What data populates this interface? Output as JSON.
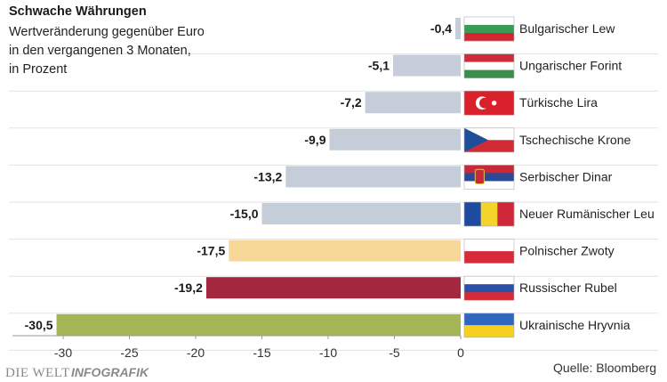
{
  "chart_data": {
    "type": "bar",
    "orientation": "horizontal",
    "title": "Schwache Währungen",
    "subtitle_lines": [
      "Wertveränderung gegenüber Euro",
      "in den vergangenen 3 Monaten,",
      "in Prozent"
    ],
    "categories": [
      "Bulgarischer Lew",
      "Ungarischer Forint",
      "Türkische Lira",
      "Tschechische Krone",
      "Serbischer Dinar",
      "Neuer Rumänischer Leu",
      "Polnischer Zwoty",
      "Russischer Rubel",
      "Ukrainische Hryvnia"
    ],
    "values": [
      -0.4,
      -5.1,
      -7.2,
      -9.9,
      -13.2,
      -15.0,
      -17.5,
      -19.2,
      -30.5
    ],
    "value_labels": [
      "-0,4",
      "-5,1",
      "-7,2",
      "-9,9",
      "-13,2",
      "-15,0",
      "-17,5",
      "-19,2",
      "-30,5"
    ],
    "bar_colors": [
      "#c5ced8",
      "#c5ced8",
      "#c5ced8",
      "#c5ced8",
      "#c5ced8",
      "#c5ced8",
      "#f8d898",
      "#a3283f",
      "#a3b554"
    ],
    "flag_icons": [
      "bulgaria-flag-icon",
      "hungary-flag-icon",
      "turkey-flag-icon",
      "czech-flag-icon",
      "serbia-flag-icon",
      "romania-flag-icon",
      "poland-flag-icon",
      "russia-flag-icon",
      "ukraine-flag-icon"
    ],
    "xticks": [
      -30,
      -25,
      -20,
      -15,
      -10,
      -5,
      0
    ],
    "xtick_labels": [
      "-30",
      "-25",
      "-20",
      "-15",
      "-10",
      "-5",
      "0"
    ],
    "xlim": [
      -31,
      0
    ],
    "grid": true,
    "grid_color": "#e3e3e3",
    "source": "Quelle: Bloomberg"
  },
  "branding": {
    "logo_part1": "DIE WELT",
    "logo_part2": "INFOGRAFIK"
  }
}
